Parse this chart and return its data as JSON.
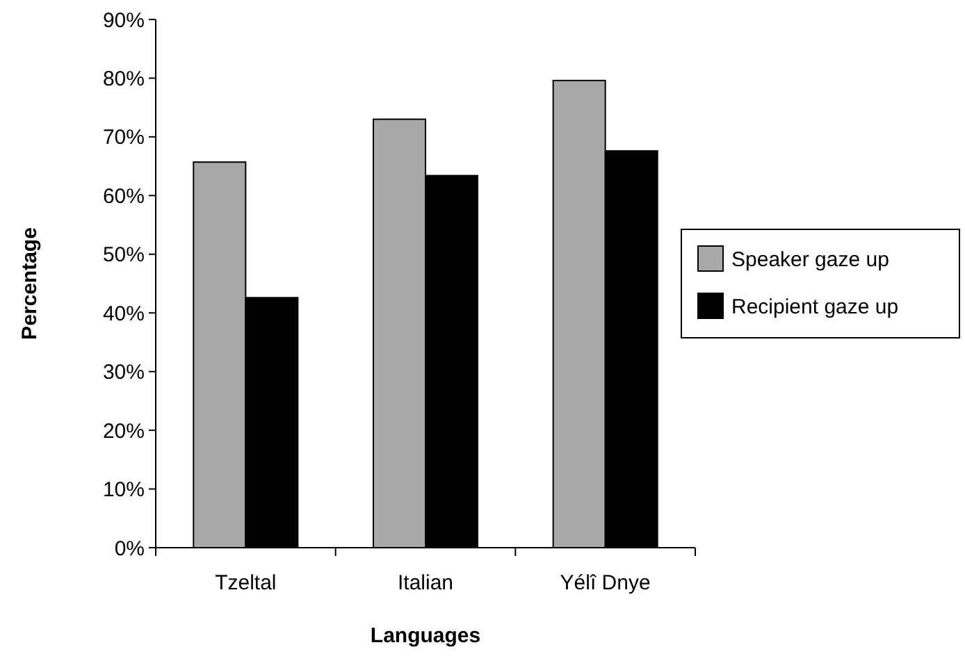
{
  "chart_data": {
    "type": "bar",
    "xlabel": "Languages",
    "ylabel": "Percentage",
    "categories": [
      "Tzeltal",
      "Italian",
      "Yélî Dnye"
    ],
    "series": [
      {
        "name": "Speaker gaze up",
        "color": "#a9a9a9",
        "values": [
          65.7,
          73,
          79.6
        ]
      },
      {
        "name": "Recipient gaze up",
        "color": "#000000",
        "values": [
          42.6,
          63.4,
          67.6
        ]
      }
    ],
    "ylim": [
      0,
      90
    ],
    "yticks": [
      {
        "value": 0,
        "label": "0%"
      },
      {
        "value": 10,
        "label": "10%"
      },
      {
        "value": 20,
        "label": "20%"
      },
      {
        "value": 30,
        "label": "30%"
      },
      {
        "value": 40,
        "label": "40%"
      },
      {
        "value": 50,
        "label": "50%"
      },
      {
        "value": 60,
        "label": "60%"
      },
      {
        "value": 70,
        "label": "70%"
      },
      {
        "value": 80,
        "label": "80%"
      },
      {
        "value": 90,
        "label": "90%"
      }
    ],
    "grid": false,
    "legend": "right"
  }
}
